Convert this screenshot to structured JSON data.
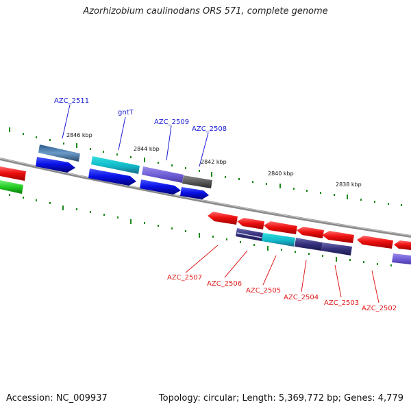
{
  "title": "Azorhizobium caulinodans ORS 571, complete genome",
  "accession": "Accession: NC_009937",
  "topology": "Topology: circular; Length: 5,369,772 bp; Genes: 4,779",
  "kbp_labels": [
    "2846 kbp",
    "2844 kbp",
    "2842 kbp",
    "2840 kbp",
    "2838 kbp"
  ],
  "genes_top": [
    "AZC_2511",
    "gntT",
    "AZC_2509",
    "AZC_2508"
  ],
  "genes_bottom": [
    "AZC_2507",
    "AZC_2506",
    "AZC_2505",
    "AZC_2504",
    "AZC_2503",
    "AZC_2502"
  ],
  "colors": {
    "label_top": "#1a1ad6",
    "label_bottom": "#e01a1a",
    "tick": "#1a8a1a",
    "backbone": "#8a8a8a",
    "cds_forward": "#0a12e8",
    "cds_reverse": "#ee1010",
    "rna": "#22cc22"
  }
}
